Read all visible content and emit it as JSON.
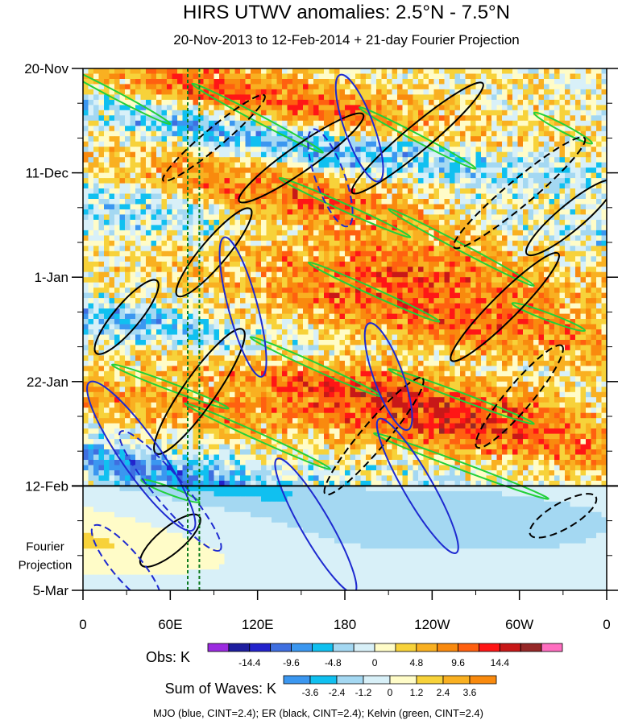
{
  "chart_data": {
    "type": "heatmap",
    "title": "HIRS UTWV anomalies: 2.5°N - 7.5°N",
    "subtitle": "20-Nov-2013 to 12-Feb-2014 + 21-day Fourier Projection",
    "xlabel": "",
    "ylabel": "",
    "x_ticks": [
      "0",
      "60E",
      "120E",
      "180",
      "120W",
      "60W",
      "0"
    ],
    "x_tick_values": [
      0,
      60,
      120,
      180,
      240,
      300,
      360
    ],
    "y_ticks": [
      "20-Nov",
      "11-Dec",
      "1-Jan",
      "22-Jan",
      "12-Feb",
      "5-Mar"
    ],
    "y_tick_days": [
      0,
      21,
      42,
      63,
      84,
      105
    ],
    "xlim": [
      0,
      360
    ],
    "ylim_days": [
      0,
      105
    ],
    "observation_end_day": 84,
    "projection_label": [
      "Fourier",
      "Projection"
    ],
    "marker_lines_lon": [
      72,
      80
    ],
    "legends": [
      {
        "label": "Obs: K",
        "tick_labels": [
          "-14.4",
          "-9.6",
          "-4.8",
          "0",
          "4.8",
          "9.6",
          "14.4"
        ],
        "colors": [
          "#9b2be0",
          "#1e1e9f",
          "#2323cc",
          "#3f6fe0",
          "#3b97f0",
          "#10c0f0",
          "#a4d8f2",
          "#d8f0f8",
          "#fffcc8",
          "#f7d23a",
          "#f9b021",
          "#f98a0e",
          "#ff6010",
          "#ff1616",
          "#c81818",
          "#962828",
          "#ff6ec0"
        ]
      },
      {
        "label": "Sum of Waves: K",
        "tick_labels": [
          "-3.6",
          "-2.4",
          "-1.2",
          "0",
          "1.2",
          "2.4",
          "3.6"
        ],
        "colors": [
          "#3b97f0",
          "#10c0f0",
          "#a4d8f2",
          "#d8f0f8",
          "#fffcc8",
          "#f7d23a",
          "#f9b021",
          "#f98a0e"
        ]
      }
    ],
    "bands": [
      {
        "lon0": 120,
        "day0": 6,
        "slope": 0.05,
        "w": 4,
        "amp": 1.0
      },
      {
        "lon0": 90,
        "day0": 12,
        "slope": 0.06,
        "w": 3,
        "amp": -0.8
      },
      {
        "lon0": 170,
        "day0": 27,
        "slope": 0.05,
        "w": 4,
        "amp": 1.1
      },
      {
        "lon0": 200,
        "day0": 39,
        "slope": 0.05,
        "w": 4,
        "amp": 1.0
      },
      {
        "lon0": 240,
        "day0": 50,
        "slope": 0.05,
        "w": 4,
        "amp": 0.9
      },
      {
        "lon0": 200,
        "day0": 64,
        "slope": 0.05,
        "w": 4,
        "amp": 1.0
      },
      {
        "lon0": 280,
        "day0": 74,
        "slope": 0.05,
        "w": 4,
        "amp": 0.8
      },
      {
        "lon0": 60,
        "day0": 68,
        "slope": 0.04,
        "w": 3,
        "amp": 0.6
      },
      {
        "lon0": 40,
        "day0": 52,
        "slope": 0.05,
        "w": 3,
        "amp": -0.9
      },
      {
        "lon0": 60,
        "day0": 30,
        "slope": 0.05,
        "w": 4,
        "amp": -0.8
      },
      {
        "lon0": 300,
        "day0": 32,
        "slope": 0.04,
        "w": 3,
        "amp": -0.6
      },
      {
        "lon0": 30,
        "day0": 80,
        "slope": 0.05,
        "w": 3,
        "amp": -1.0
      },
      {
        "lon0": 300,
        "day0": 90,
        "slope": 0.02,
        "w": 8,
        "amp": -0.4
      },
      {
        "lon0": 100,
        "day0": 98,
        "slope": 0.02,
        "w": 6,
        "amp": -0.5
      },
      {
        "lon0": 20,
        "day0": 96,
        "slope": 0.03,
        "w": 4,
        "amp": 0.7
      },
      {
        "lon0": 250,
        "day0": 18,
        "slope": 0.04,
        "w": 3,
        "amp": -0.6
      }
    ],
    "kelvin_contours": [
      {
        "lon": 20,
        "day": 5,
        "len": 80,
        "tilt": 0.07
      },
      {
        "lon": 120,
        "day": 10,
        "len": 90,
        "tilt": 0.07
      },
      {
        "lon": 230,
        "day": 14,
        "len": 80,
        "tilt": 0.07
      },
      {
        "lon": 330,
        "day": 12,
        "len": 40,
        "tilt": 0.07
      },
      {
        "lon": 180,
        "day": 28,
        "len": 90,
        "tilt": 0.06
      },
      {
        "lon": 260,
        "day": 36,
        "len": 100,
        "tilt": 0.07
      },
      {
        "lon": 200,
        "day": 45,
        "len": 90,
        "tilt": 0.06
      },
      {
        "lon": 320,
        "day": 50,
        "len": 50,
        "tilt": 0.05
      },
      {
        "lon": 160,
        "day": 60,
        "len": 90,
        "tilt": 0.06
      },
      {
        "lon": 60,
        "day": 64,
        "len": 80,
        "tilt": 0.05
      },
      {
        "lon": 260,
        "day": 66,
        "len": 100,
        "tilt": 0.05
      },
      {
        "lon": 120,
        "day": 74,
        "len": 100,
        "tilt": 0.06
      },
      {
        "lon": 260,
        "day": 80,
        "len": 120,
        "tilt": 0.05
      },
      {
        "lon": 60,
        "day": 85,
        "len": 40,
        "tilt": 0.05
      }
    ],
    "er_contours": [
      {
        "lon": 150,
        "day": 18,
        "rx": 40,
        "ry": 4,
        "rot": -35,
        "dashed": false
      },
      {
        "lon": 230,
        "day": 14,
        "rx": 45,
        "ry": 4,
        "rot": -40,
        "dashed": false
      },
      {
        "lon": 90,
        "day": 14,
        "rx": 35,
        "ry": 3,
        "rot": -40,
        "dashed": true
      },
      {
        "lon": 300,
        "day": 25,
        "rx": 45,
        "ry": 4,
        "rot": -40,
        "dashed": true
      },
      {
        "lon": 335,
        "day": 30,
        "rx": 30,
        "ry": 4,
        "rot": -40,
        "dashed": false
      },
      {
        "lon": 90,
        "day": 37,
        "rx": 30,
        "ry": 4,
        "rot": -50,
        "dashed": false
      },
      {
        "lon": 30,
        "day": 50,
        "rx": 25,
        "ry": 4,
        "rot": -50,
        "dashed": false
      },
      {
        "lon": 290,
        "day": 48,
        "rx": 40,
        "ry": 4,
        "rot": -45,
        "dashed": false
      },
      {
        "lon": 300,
        "day": 66,
        "rx": 35,
        "ry": 4,
        "rot": -50,
        "dashed": true
      },
      {
        "lon": 80,
        "day": 65,
        "rx": 40,
        "ry": 5,
        "rot": -55,
        "dashed": false
      },
      {
        "lon": 200,
        "day": 74,
        "rx": 40,
        "ry": 4,
        "rot": -50,
        "dashed": true
      },
      {
        "lon": 330,
        "day": 90,
        "rx": 20,
        "ry": 4,
        "rot": -30,
        "dashed": true
      },
      {
        "lon": 60,
        "day": 95,
        "rx": 20,
        "ry": 4,
        "rot": -40,
        "dashed": false
      }
    ],
    "mjo_contours": [
      {
        "lon": 190,
        "day": 12,
        "rx": 22,
        "ry": 6,
        "rot": 70,
        "dashed": false
      },
      {
        "lon": 170,
        "day": 22,
        "rx": 20,
        "ry": 6,
        "rot": 70,
        "dashed": true
      },
      {
        "lon": 110,
        "day": 48,
        "rx": 28,
        "ry": 6,
        "rot": 75,
        "dashed": false
      },
      {
        "lon": 40,
        "day": 78,
        "rx": 35,
        "ry": 8,
        "rot": 55,
        "dashed": false
      },
      {
        "lon": 60,
        "day": 85,
        "rx": 30,
        "ry": 6,
        "rot": 50,
        "dashed": true
      },
      {
        "lon": 160,
        "day": 92,
        "rx": 30,
        "ry": 6,
        "rot": 60,
        "dashed": false
      },
      {
        "lon": 230,
        "day": 84,
        "rx": 30,
        "ry": 6,
        "rot": 60,
        "dashed": false
      },
      {
        "lon": 30,
        "day": 100,
        "rx": 20,
        "ry": 6,
        "rot": 50,
        "dashed": true
      },
      {
        "lon": 210,
        "day": 62,
        "rx": 22,
        "ry": 6,
        "rot": 70,
        "dashed": false
      }
    ]
  },
  "legend_note": "MJO (blue, CINT=2.4); ER (black, CINT=2.4); Kelvin (green, CINT=2.4)"
}
